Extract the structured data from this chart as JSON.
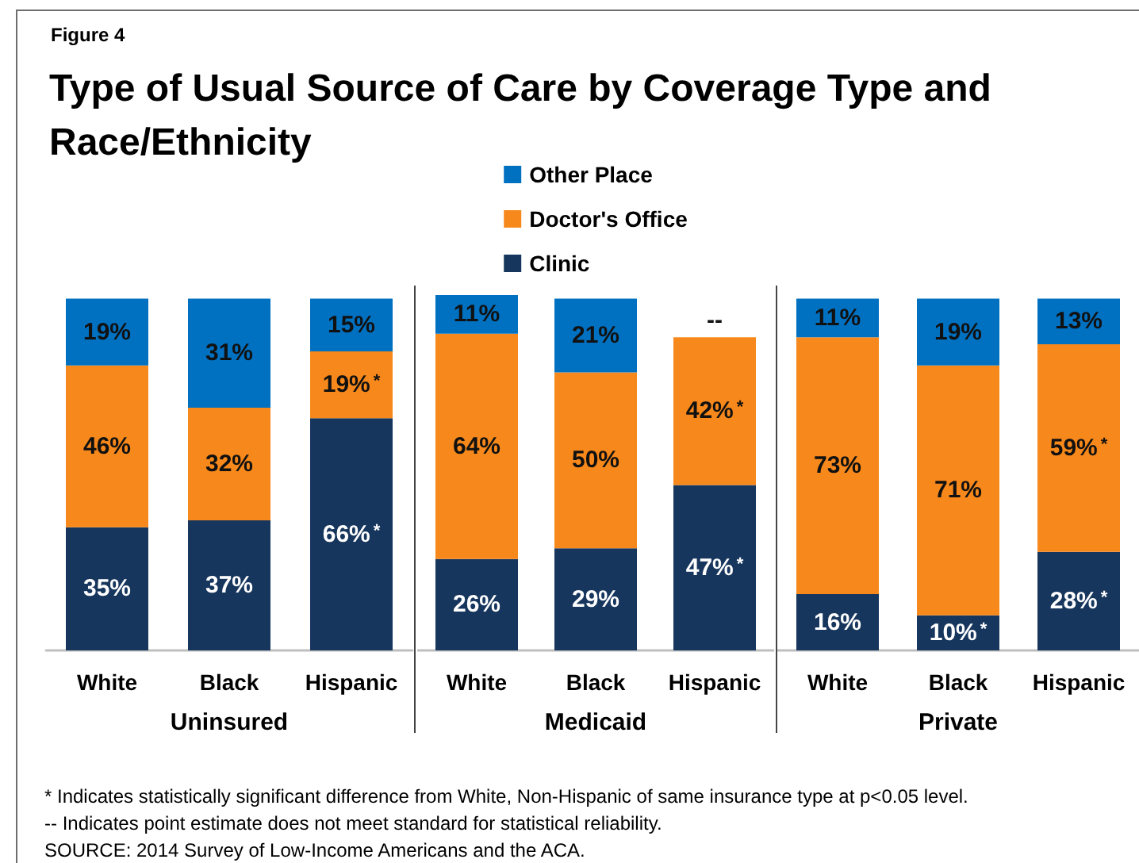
{
  "chart_data": [
    {
      "type": "bar",
      "subtitle": "Figure 4",
      "title": "Type of Usual Source of Care by Coverage Type and Race/Ethnicity",
      "xlabel": "Uninsured",
      "categories": [
        "White",
        "Black",
        "Hispanic"
      ],
      "stacked": true,
      "tick_labels": "x",
      "series": [
        {
          "color": "#17365d",
          "values": [
            35,
            37,
            66
          ],
          "value_labels": [
            "35%",
            "37%",
            "66%$^{*}$"
          ]
        },
        {
          "color": "#f7881b",
          "values": [
            46,
            32,
            19
          ],
          "value_labels": [
            "46%",
            "32%",
            "19%$^{*}$"
          ]
        },
        {
          "color": "#0070c0",
          "values": [
            19,
            31,
            15
          ],
          "value_labels": [
            "19%",
            "31%",
            "15%"
          ]
        }
      ],
      "annotations": [
        "* Indicates statistically significant difference from White, Non-Hispanic of same insurance type at p<0.05 level.",
        "-- Indicates point estimate does not meet standard for statistical reliability.",
        "SOURCE: 2014 Survey of Low-Income Americans and the ACA."
      ]
    },
    {
      "type": "bar",
      "xlabel": "Medicaid",
      "categories": [
        "White",
        "Black",
        "Hispanic"
      ],
      "stacked": true,
      "tick_labels": "x",
      "legend": "top",
      "series": [
        {
          "name": "Clinic",
          "color": "#17365d",
          "values": [
            26,
            29,
            47
          ],
          "value_labels": [
            "26%",
            "29%",
            "47%$^{*}$"
          ]
        },
        {
          "name": "Doctor's Office",
          "color": "#f7881b",
          "values": [
            64,
            50,
            42
          ],
          "value_labels": [
            "64%",
            "50%",
            "42%$^{*}$"
          ]
        },
        {
          "name": "Other Place",
          "color": "#0070c0",
          "values": [
            11,
            21,
            null
          ],
          "value_labels": [
            "11%",
            "21%",
            "--"
          ]
        }
      ]
    },
    {
      "type": "bar",
      "xlabel": "Private",
      "categories": [
        "White",
        "Black",
        "Hispanic"
      ],
      "stacked": true,
      "tick_labels": "x",
      "series": [
        {
          "color": "#17365d",
          "values": [
            16,
            10,
            28
          ],
          "value_labels": [
            "16%",
            "10%$^{*}$",
            "28%$^{*}$"
          ]
        },
        {
          "color": "#f7881b",
          "values": [
            73,
            71,
            59
          ],
          "value_labels": [
            "73%",
            "71%",
            "59%$^{*}$"
          ]
        },
        {
          "color": "#0070c0",
          "values": [
            11,
            19,
            13
          ],
          "value_labels": [
            "11%",
            "19%",
            "13%"
          ]
        }
      ]
    }
  ]
}
